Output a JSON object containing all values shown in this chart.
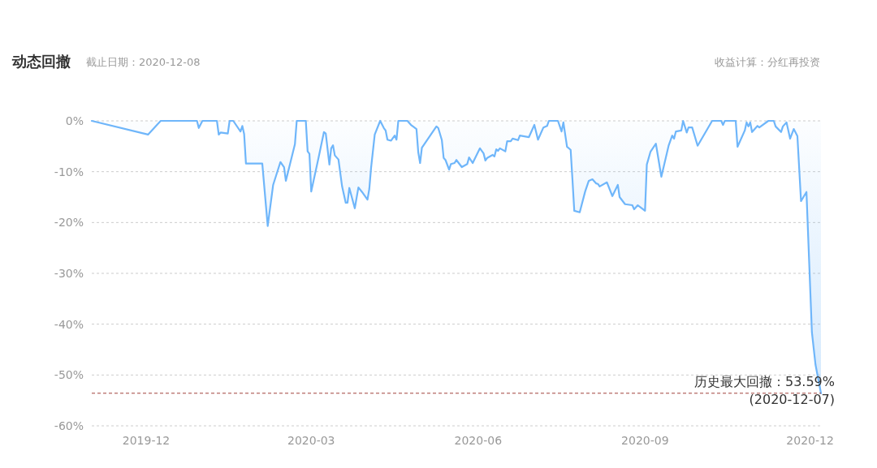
{
  "chart_data": {
    "type": "area",
    "title": "动态回撤",
    "subtitle": "截止日期：2020-12-08",
    "annotations": [
      "收益计算：分红再投资"
    ],
    "x": [
      "2019-11-01",
      "2019-12-02",
      "2019-12-09",
      "2019-12-29",
      "2019-12-30",
      "2020-01-01",
      "2020-01-09",
      "2020-01-10",
      "2020-01-11",
      "2020-01-15",
      "2020-01-16",
      "2020-01-18",
      "2020-01-22",
      "2020-01-23",
      "2020-01-24",
      "2020-01-25",
      "2020-02-03",
      "2020-02-06",
      "2020-02-09",
      "2020-02-13",
      "2020-02-15",
      "2020-02-16",
      "2020-02-21",
      "2020-02-22",
      "2020-02-27",
      "2020-02-28",
      "2020-02-29",
      "2020-03-01",
      "2020-03-05",
      "2020-03-08",
      "2020-03-09",
      "2020-03-11",
      "2020-03-12",
      "2020-03-13",
      "2020-03-14",
      "2020-03-16",
      "2020-03-18",
      "2020-03-20",
      "2020-03-21",
      "2020-03-22",
      "2020-03-25",
      "2020-03-27",
      "2020-03-29",
      "2020-04-01",
      "2020-04-02",
      "2020-04-03",
      "2020-04-05",
      "2020-04-08",
      "2020-04-10",
      "2020-04-11",
      "2020-04-12",
      "2020-04-14",
      "2020-04-16",
      "2020-04-17",
      "2020-04-18",
      "2020-04-23",
      "2020-04-25",
      "2020-04-28",
      "2020-04-29",
      "2020-04-30",
      "2020-05-01",
      "2020-05-09",
      "2020-05-10",
      "2020-05-12",
      "2020-05-13",
      "2020-05-14",
      "2020-05-16",
      "2020-05-17",
      "2020-05-19",
      "2020-05-20",
      "2020-05-23",
      "2020-05-26",
      "2020-05-27",
      "2020-05-29",
      "2020-06-02",
      "2020-06-04",
      "2020-06-05",
      "2020-06-06",
      "2020-06-09",
      "2020-06-10",
      "2020-06-11",
      "2020-06-12",
      "2020-06-13",
      "2020-06-16",
      "2020-06-17",
      "2020-06-19",
      "2020-06-20",
      "2020-06-23",
      "2020-06-24",
      "2020-06-29",
      "2020-07-02",
      "2020-07-04",
      "2020-07-07",
      "2020-07-09",
      "2020-07-10",
      "2020-07-15",
      "2020-07-17",
      "2020-07-18",
      "2020-07-20",
      "2020-07-22",
      "2020-07-23",
      "2020-07-24",
      "2020-07-27",
      "2020-07-30",
      "2020-08-01",
      "2020-08-03",
      "2020-08-05",
      "2020-08-06",
      "2020-08-07",
      "2020-08-11",
      "2020-08-14",
      "2020-08-17",
      "2020-08-18",
      "2020-08-21",
      "2020-08-25",
      "2020-08-26",
      "2020-08-28",
      "2020-09-01",
      "2020-09-02",
      "2020-09-04",
      "2020-09-07",
      "2020-09-10",
      "2020-09-14",
      "2020-09-16",
      "2020-09-17",
      "2020-09-18",
      "2020-09-21",
      "2020-09-22",
      "2020-09-24",
      "2020-09-25",
      "2020-09-27",
      "2020-09-30",
      "2020-10-08",
      "2020-10-13",
      "2020-10-14",
      "2020-10-15",
      "2020-10-21",
      "2020-10-22",
      "2020-10-26",
      "2020-10-27",
      "2020-10-28",
      "2020-10-29",
      "2020-10-30",
      "2020-11-02",
      "2020-11-03",
      "2020-11-08",
      "2020-11-11",
      "2020-11-12",
      "2020-11-15",
      "2020-11-16",
      "2020-11-18",
      "2020-11-20",
      "2020-11-22",
      "2020-11-24",
      "2020-11-26",
      "2020-11-29",
      "2020-12-02",
      "2020-12-04",
      "2020-12-07"
    ],
    "series": [
      {
        "color": "#6fb6fa",
        "values": [
          0,
          -2.7,
          0,
          0,
          -1.4,
          0,
          0,
          -2.7,
          -2.3,
          -2.5,
          0,
          0,
          -2.1,
          -1,
          -2.6,
          -8.4,
          -8.4,
          -20.7,
          -12.6,
          -8.1,
          -9.1,
          -11.8,
          -4.6,
          0,
          0,
          -6,
          -6.5,
          -13.9,
          -7.3,
          -2.2,
          -2.5,
          -8.6,
          -5.4,
          -4.8,
          -6.8,
          -7.6,
          -12.9,
          -16.1,
          -16.1,
          -13.2,
          -17.2,
          -13.1,
          -14,
          -15.5,
          -13.4,
          -9.2,
          -2.7,
          0,
          -1.4,
          -1.9,
          -3.7,
          -3.9,
          -2.9,
          -3.7,
          0,
          0,
          -0.8,
          -1.6,
          -6.2,
          -8.3,
          -5.3,
          -1.1,
          -1.4,
          -3.8,
          -7.3,
          -7.7,
          -9.6,
          -8.5,
          -8.3,
          -7.7,
          -9.1,
          -8.5,
          -7.2,
          -8.3,
          -5.4,
          -6.4,
          -7.8,
          -7.3,
          -6.7,
          -7,
          -5.6,
          -5.9,
          -5.4,
          -6,
          -4,
          -4,
          -3.5,
          -3.8,
          -2.9,
          -3.2,
          -0.8,
          -3.7,
          -1.3,
          -1,
          0,
          0,
          -2.1,
          -0.3,
          -5.1,
          -5.7,
          -11.6,
          -17.7,
          -18,
          -13.9,
          -11.8,
          -11.5,
          -12.3,
          -12.4,
          -12.9,
          -12.1,
          -14.8,
          -12.6,
          -15,
          -16.4,
          -16.6,
          -17.4,
          -16.6,
          -17.7,
          -8.6,
          -6.1,
          -4.5,
          -11,
          -4.9,
          -2.9,
          -3.5,
          -2.1,
          -1.9,
          0,
          -2.3,
          -1.3,
          -1.3,
          -4.9,
          0,
          0,
          -0.8,
          0,
          0,
          -5.1,
          -1.9,
          -0.3,
          -1.1,
          -0.3,
          -2.2,
          -1,
          -1.3,
          0,
          0,
          -1.1,
          -2.2,
          -1.1,
          -0.3,
          -3.5,
          -1.6,
          -3,
          -15.8,
          -14,
          -41.6,
          -48,
          -53.59
        ]
      }
    ],
    "xlim": [
      "2019-11-01",
      "2020-12-07"
    ],
    "xticks": [
      {
        "value": "2019-12-01",
        "label": "2019-12"
      },
      {
        "value": "2020-03-01",
        "label": "2020-03"
      },
      {
        "value": "2020-06-01",
        "label": "2020-06"
      },
      {
        "value": "2020-09-01",
        "label": "2020-09"
      },
      {
        "value": "2020-12-01",
        "label": "2020-12"
      }
    ],
    "ylim": [
      -60,
      0
    ],
    "yticks": [
      {
        "value": 0,
        "label": "0%"
      },
      {
        "value": -10,
        "label": "-10%"
      },
      {
        "value": -20,
        "label": "-20%"
      },
      {
        "value": -30,
        "label": "-30%"
      },
      {
        "value": -40,
        "label": "-40%"
      },
      {
        "value": -50,
        "label": "-50%"
      },
      {
        "value": -60,
        "label": "-60%"
      }
    ],
    "grid": "y",
    "ref_lines": [
      {
        "axis": "y",
        "value": -53.59,
        "label": "历史最大回撤：53.59%\n(2020-12-07)",
        "color": "#a0413a",
        "line_style": "dashed"
      }
    ]
  }
}
